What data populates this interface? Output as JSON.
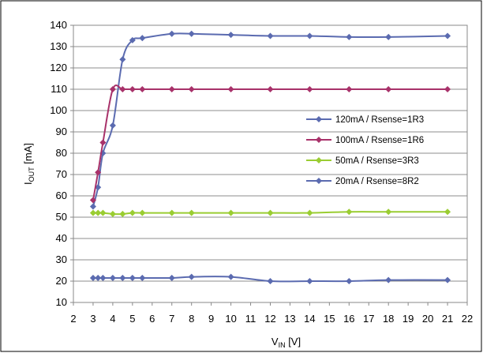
{
  "chart_data": {
    "type": "line",
    "xlabel_main": "V",
    "xlabel_sub": "IN",
    "xlabel_unit": " [V]",
    "ylabel_main": "I",
    "ylabel_sub": "OUT",
    "ylabel_unit": " [mA]",
    "xlim": [
      2,
      22
    ],
    "ylim": [
      10,
      140
    ],
    "xticks": [
      2,
      3,
      4,
      5,
      6,
      7,
      8,
      9,
      10,
      11,
      12,
      13,
      14,
      15,
      16,
      17,
      18,
      19,
      20,
      21,
      22
    ],
    "yticks": [
      10,
      20,
      30,
      40,
      50,
      60,
      70,
      80,
      90,
      100,
      110,
      120,
      130,
      140
    ],
    "grid": "horizontal",
    "legend_position": "right",
    "series": [
      {
        "name": "120mA / Rsense=1R3",
        "color": "#5b6bb0",
        "x": [
          3,
          3.25,
          3.5,
          4,
          4.5,
          5,
          5.5,
          7,
          8,
          10,
          12,
          14,
          16,
          18,
          21
        ],
        "y": [
          55,
          64,
          80,
          93,
          124,
          133,
          134,
          136,
          136,
          135.5,
          135,
          135,
          134.5,
          134.5,
          135
        ]
      },
      {
        "name": "100mA / Rsense=1R6",
        "color": "#a8326a",
        "x": [
          3,
          3.25,
          3.5,
          4,
          4.5,
          5,
          5.5,
          7,
          8,
          10,
          12,
          14,
          16,
          18,
          21
        ],
        "y": [
          58,
          71,
          85,
          110,
          110,
          110,
          110,
          110,
          110,
          110,
          110,
          110,
          110,
          110,
          110
        ]
      },
      {
        "name": "50mA / Rsense=3R3",
        "color": "#9acd32",
        "x": [
          3,
          3.25,
          3.5,
          4,
          4.5,
          5,
          5.5,
          7,
          8,
          10,
          12,
          14,
          16,
          18,
          21
        ],
        "y": [
          52,
          52,
          52,
          51.5,
          51.5,
          52,
          52,
          52,
          52,
          52,
          52,
          52,
          52.5,
          52.5,
          52.5
        ]
      },
      {
        "name": "20mA / Rsense=8R2",
        "color": "#5b6bb0",
        "x": [
          3,
          3.25,
          3.5,
          4,
          4.5,
          5,
          5.5,
          7,
          8,
          10,
          12,
          14,
          16,
          18,
          21
        ],
        "y": [
          21.5,
          21.5,
          21.5,
          21.5,
          21.5,
          21.5,
          21.5,
          21.5,
          22,
          22,
          20,
          20,
          20,
          20.5,
          20.5
        ]
      }
    ]
  }
}
